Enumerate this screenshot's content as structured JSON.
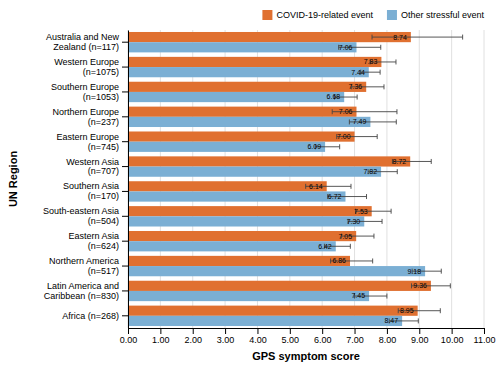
{
  "chart_data": {
    "type": "bar",
    "orientation": "horizontal",
    "xlabel": "GPS symptom score",
    "ylabel": "UN Region",
    "categories": [
      "Australia and New\nZealand (n=117)",
      "Western Europe\n(n=1075)",
      "Southern Europe\n(n=1053)",
      "Northern Europe\n(n=237)",
      "Eastern Europe\n(n=745)",
      "Western Asia\n(n=707)",
      "Southern Asia\n(n=170)",
      "South-eastern Asia\n(n=504)",
      "Eastern Asia\n(n=624)",
      "Northern America\n(n=517)",
      "Latin America and\nCaribbean (n=830)",
      "Africa (n=268)"
    ],
    "series": [
      {
        "name": "COVID-19-related event",
        "color": "#E07030",
        "values": [
          8.74,
          7.83,
          7.36,
          7.06,
          7.0,
          8.72,
          6.14,
          7.53,
          7.05,
          6.86,
          9.36,
          8.95
        ],
        "value_labels": [
          "8.74",
          "7.83",
          "7.36",
          "7.06",
          "7.00",
          "8.72",
          "6.14",
          "7.53",
          "7.05",
          "6.86",
          "9.36",
          "8.95"
        ],
        "err_low": [
          1.2,
          0.35,
          0.45,
          0.75,
          0.55,
          0.55,
          0.65,
          0.5,
          0.45,
          0.6,
          0.6,
          0.6
        ],
        "err_high": [
          1.6,
          0.45,
          0.55,
          1.25,
          0.7,
          0.65,
          0.75,
          0.6,
          0.55,
          0.7,
          0.6,
          0.7
        ]
      },
      {
        "name": "Other stressful event",
        "color": "#7BAFD4",
        "values": [
          7.06,
          7.44,
          6.68,
          7.49,
          6.09,
          7.82,
          6.72,
          7.3,
          6.42,
          9.18,
          7.45,
          8.47
        ],
        "value_labels": [
          "7.06",
          "7.44",
          "6.68",
          "7.49",
          "6.09",
          "7.82",
          "6.72",
          "7.30",
          "6.42",
          "9.18",
          "7.45",
          "8.47"
        ],
        "err_low": [
          0.55,
          0.25,
          0.3,
          0.65,
          0.3,
          0.4,
          0.55,
          0.5,
          0.35,
          0.4,
          0.45,
          0.4
        ],
        "err_high": [
          0.75,
          0.35,
          0.4,
          0.8,
          0.45,
          0.5,
          0.65,
          0.55,
          0.45,
          0.5,
          0.55,
          0.5
        ]
      }
    ],
    "xlim": [
      0,
      11
    ],
    "xticks": [
      {
        "value": 0,
        "label": "0.00"
      },
      {
        "value": 1,
        "label": "1.00"
      },
      {
        "value": 2,
        "label": "2.00"
      },
      {
        "value": 3,
        "label": "3.00"
      },
      {
        "value": 4,
        "label": "4.00"
      },
      {
        "value": 5,
        "label": "5.00"
      },
      {
        "value": 6,
        "label": "6.00"
      },
      {
        "value": 7,
        "label": "7.00"
      },
      {
        "value": 8,
        "label": "8.00"
      },
      {
        "value": 9,
        "label": "9.00"
      },
      {
        "value": 10,
        "label": "10.00"
      },
      {
        "value": 11,
        "label": "11.00"
      }
    ],
    "grid": true,
    "legend": "upper right",
    "data_labels": true
  }
}
